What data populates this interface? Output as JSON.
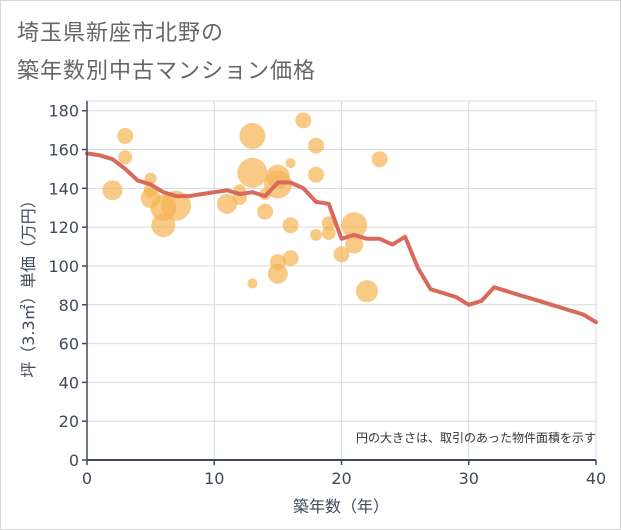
{
  "title": {
    "line1": "埼玉県新座市北野の",
    "line2": "築年数別中古マンション価格"
  },
  "note": "円の大きさは、取引のあった物件面積を示す",
  "colors": {
    "bubble": "#f5b452",
    "line": "#d9695a",
    "grid": "#d4dbe3",
    "axis": "#404a5a"
  },
  "chart_data": {
    "type": "scatter",
    "xlabel": "築年数（年）",
    "ylabel": "坪（3.3㎡）単価（万円）",
    "xlim": [
      0,
      40
    ],
    "ylim": [
      0,
      185
    ],
    "xticks": [
      0,
      10,
      20,
      30,
      40
    ],
    "yticks": [
      0,
      20,
      40,
      60,
      80,
      100,
      120,
      140,
      160,
      180
    ],
    "grid": true,
    "bubbles": [
      {
        "x": 2,
        "y": 139,
        "r": 10
      },
      {
        "x": 3,
        "y": 167,
        "r": 8
      },
      {
        "x": 3,
        "y": 156,
        "r": 7
      },
      {
        "x": 5,
        "y": 145,
        "r": 6
      },
      {
        "x": 5,
        "y": 139,
        "r": 7
      },
      {
        "x": 5,
        "y": 135,
        "r": 10
      },
      {
        "x": 6,
        "y": 121,
        "r": 12
      },
      {
        "x": 6,
        "y": 130,
        "r": 13
      },
      {
        "x": 7,
        "y": 131,
        "r": 15
      },
      {
        "x": 11,
        "y": 132,
        "r": 10
      },
      {
        "x": 12,
        "y": 135,
        "r": 7
      },
      {
        "x": 12,
        "y": 139,
        "r": 6
      },
      {
        "x": 13,
        "y": 167,
        "r": 13
      },
      {
        "x": 13,
        "y": 148,
        "r": 15
      },
      {
        "x": 13,
        "y": 91,
        "r": 5
      },
      {
        "x": 14,
        "y": 128,
        "r": 8
      },
      {
        "x": 14,
        "y": 137,
        "r": 6
      },
      {
        "x": 15,
        "y": 146,
        "r": 12
      },
      {
        "x": 15,
        "y": 142,
        "r": 14
      },
      {
        "x": 15,
        "y": 102,
        "r": 8
      },
      {
        "x": 15,
        "y": 96,
        "r": 10
      },
      {
        "x": 16,
        "y": 153,
        "r": 5
      },
      {
        "x": 16,
        "y": 121,
        "r": 8
      },
      {
        "x": 16,
        "y": 104,
        "r": 8
      },
      {
        "x": 17,
        "y": 175,
        "r": 8
      },
      {
        "x": 18,
        "y": 162,
        "r": 8
      },
      {
        "x": 18,
        "y": 147,
        "r": 8
      },
      {
        "x": 18,
        "y": 116,
        "r": 6
      },
      {
        "x": 19,
        "y": 122,
        "r": 7
      },
      {
        "x": 19,
        "y": 117,
        "r": 7
      },
      {
        "x": 20,
        "y": 106,
        "r": 8
      },
      {
        "x": 21,
        "y": 121,
        "r": 13
      },
      {
        "x": 21,
        "y": 111,
        "r": 9
      },
      {
        "x": 22,
        "y": 87,
        "r": 11
      },
      {
        "x": 23,
        "y": 155,
        "r": 8
      }
    ],
    "line": {
      "x": [
        0,
        1,
        2,
        3,
        4,
        5,
        6,
        7,
        8,
        9,
        10,
        11,
        12,
        13,
        14,
        15,
        16,
        17,
        18,
        19,
        20,
        21,
        22,
        23,
        24,
        25,
        26,
        27,
        28,
        29,
        30,
        31,
        32,
        33,
        34,
        35,
        36,
        37,
        38,
        39,
        40
      ],
      "y": [
        158,
        157,
        155,
        150,
        144,
        142,
        138,
        136,
        136,
        137,
        138,
        139,
        137,
        138,
        136,
        143,
        143,
        140,
        133,
        132,
        114,
        116,
        114,
        114,
        111,
        115,
        99,
        88,
        86,
        84,
        80,
        82,
        89,
        87,
        85,
        83,
        81,
        79,
        77,
        75,
        71
      ]
    }
  }
}
